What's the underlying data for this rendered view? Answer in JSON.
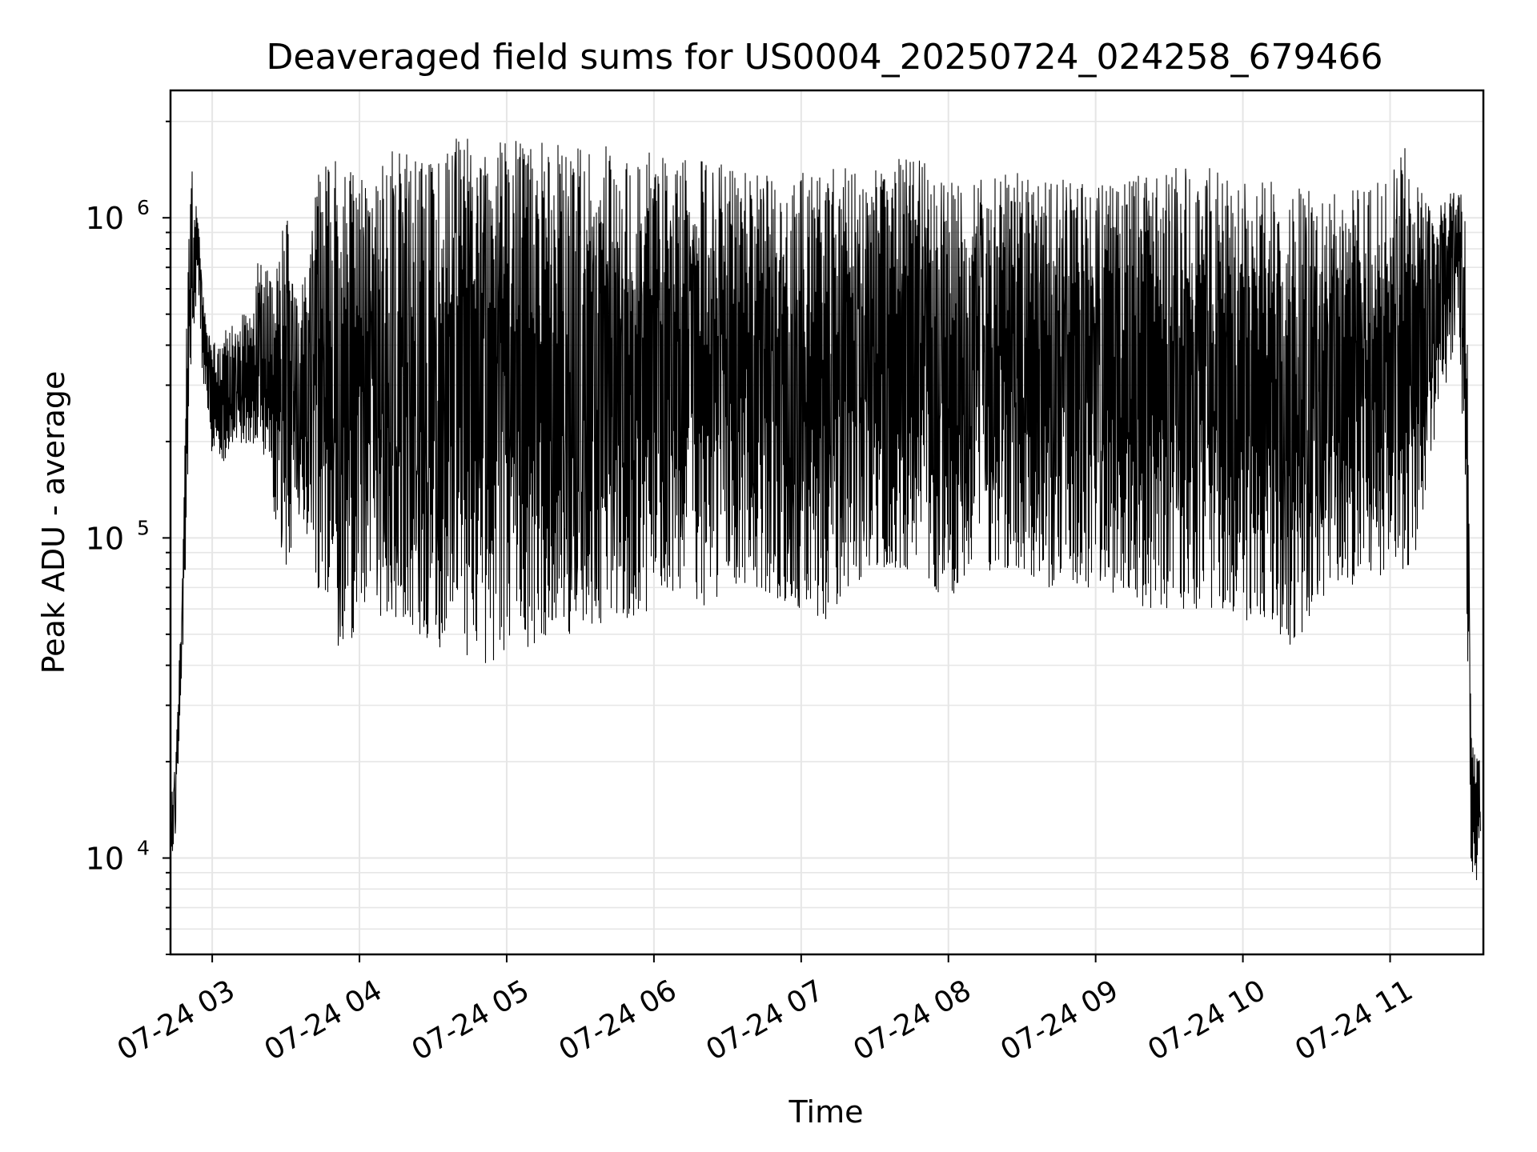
{
  "chart_data": {
    "type": "line",
    "title": "Deaveraged field sums for US0004_20250724_024258_679466",
    "xlabel": "Time",
    "ylabel": "Peak ADU - average",
    "y_scale": "log",
    "ylim": [
      5000,
      2500000
    ],
    "xlim": [
      "2025-07-24 02:43",
      "2025-07-24 11:38"
    ],
    "grid": true,
    "line_color": "#000000",
    "grid_color": "#e6e6e6",
    "x_ticks": [
      {
        "value": "2025-07-24 03:00",
        "label": "07-24 03"
      },
      {
        "value": "2025-07-24 04:00",
        "label": "07-24 04"
      },
      {
        "value": "2025-07-24 05:00",
        "label": "07-24 05"
      },
      {
        "value": "2025-07-24 06:00",
        "label": "07-24 06"
      },
      {
        "value": "2025-07-24 07:00",
        "label": "07-24 07"
      },
      {
        "value": "2025-07-24 08:00",
        "label": "07-24 08"
      },
      {
        "value": "2025-07-24 09:00",
        "label": "07-24 09"
      },
      {
        "value": "2025-07-24 10:00",
        "label": "07-24 10"
      },
      {
        "value": "2025-07-24 11:00",
        "label": "07-24 11"
      }
    ],
    "y_ticks": [
      {
        "value": 10000,
        "base": "10",
        "exp": "4"
      },
      {
        "value": 100000,
        "base": "10",
        "exp": "5"
      },
      {
        "value": 1000000,
        "base": "10",
        "exp": "6"
      }
    ],
    "series": [
      {
        "x": [
          "2025-07-24 02:43",
          "2025-07-24 02:45",
          "2025-07-24 02:48",
          "2025-07-24 02:50",
          "2025-07-24 02:52",
          "2025-07-24 02:54",
          "2025-07-24 02:56",
          "2025-07-24 02:58",
          "2025-07-24 03:00",
          "2025-07-24 03:05",
          "2025-07-24 03:10",
          "2025-07-24 03:15",
          "2025-07-24 03:20",
          "2025-07-24 03:25",
          "2025-07-24 03:30",
          "2025-07-24 03:35",
          "2025-07-24 03:40",
          "2025-07-24 03:45",
          "2025-07-24 03:50",
          "2025-07-24 03:55",
          "2025-07-24 04:00",
          "2025-07-24 04:05",
          "2025-07-24 04:10",
          "2025-07-24 04:15",
          "2025-07-24 04:20",
          "2025-07-24 04:30",
          "2025-07-24 04:40",
          "2025-07-24 04:50",
          "2025-07-24 05:00",
          "2025-07-24 05:10",
          "2025-07-24 05:20",
          "2025-07-24 05:30",
          "2025-07-24 05:40",
          "2025-07-24 05:50",
          "2025-07-24 06:00",
          "2025-07-24 06:10",
          "2025-07-24 06:20",
          "2025-07-24 06:30",
          "2025-07-24 06:40",
          "2025-07-24 06:50",
          "2025-07-24 07:00",
          "2025-07-24 07:10",
          "2025-07-24 07:20",
          "2025-07-24 07:30",
          "2025-07-24 07:40",
          "2025-07-24 07:50",
          "2025-07-24 08:00",
          "2025-07-24 08:10",
          "2025-07-24 08:20",
          "2025-07-24 08:30",
          "2025-07-24 08:40",
          "2025-07-24 08:50",
          "2025-07-24 09:00",
          "2025-07-24 09:10",
          "2025-07-24 09:20",
          "2025-07-24 09:30",
          "2025-07-24 09:40",
          "2025-07-24 09:50",
          "2025-07-24 10:00",
          "2025-07-24 10:10",
          "2025-07-24 10:20",
          "2025-07-24 10:30",
          "2025-07-24 10:40",
          "2025-07-24 10:50",
          "2025-07-24 11:00",
          "2025-07-24 11:05",
          "2025-07-24 11:10",
          "2025-07-24 11:15",
          "2025-07-24 11:20",
          "2025-07-24 11:25",
          "2025-07-24 11:28",
          "2025-07-24 11:31",
          "2025-07-24 11:33",
          "2025-07-24 11:35",
          "2025-07-24 11:37"
        ],
        "low": [
          9000,
          12000,
          40000,
          150000,
          400000,
          600000,
          300000,
          250000,
          180000,
          170000,
          180000,
          200000,
          190000,
          120000,
          80000,
          110000,
          90000,
          60000,
          45000,
          45000,
          55000,
          60000,
          55000,
          55000,
          50000,
          45000,
          45000,
          40000,
          40000,
          42000,
          45000,
          50000,
          55000,
          55000,
          60000,
          70000,
          60000,
          70000,
          70000,
          65000,
          60000,
          55000,
          70000,
          80000,
          80000,
          70000,
          65000,
          75000,
          80000,
          80000,
          70000,
          70000,
          70000,
          65000,
          60000,
          60000,
          60000,
          60000,
          55000,
          55000,
          45000,
          60000,
          70000,
          70000,
          80000,
          80000,
          80000,
          150000,
          250000,
          350000,
          500000,
          80000,
          9000,
          8000,
          12000
        ],
        "high": [
          15000,
          20000,
          80000,
          800000,
          1500000,
          1100000,
          600000,
          450000,
          400000,
          450000,
          500000,
          500000,
          900000,
          600000,
          1100000,
          500000,
          900000,
          1700000,
          1500000,
          1600000,
          1400000,
          1200000,
          1600000,
          1700000,
          1700000,
          1750000,
          1800000,
          1800000,
          1750000,
          1750000,
          1700000,
          1650000,
          1700000,
          1650000,
          1650000,
          1600000,
          1500000,
          1500000,
          1450000,
          1400000,
          1400000,
          1400000,
          1500000,
          1600000,
          1600000,
          1500000,
          1300000,
          1300000,
          1350000,
          1400000,
          1350000,
          1300000,
          1300000,
          1350000,
          1400000,
          1450000,
          1500000,
          1400000,
          1300000,
          1300000,
          1350000,
          1200000,
          1200000,
          1300000,
          1350000,
          1900000,
          1300000,
          1200000,
          1100000,
          1200000,
          1250000,
          1150000,
          25000,
          22000,
          20000
        ]
      }
    ]
  }
}
